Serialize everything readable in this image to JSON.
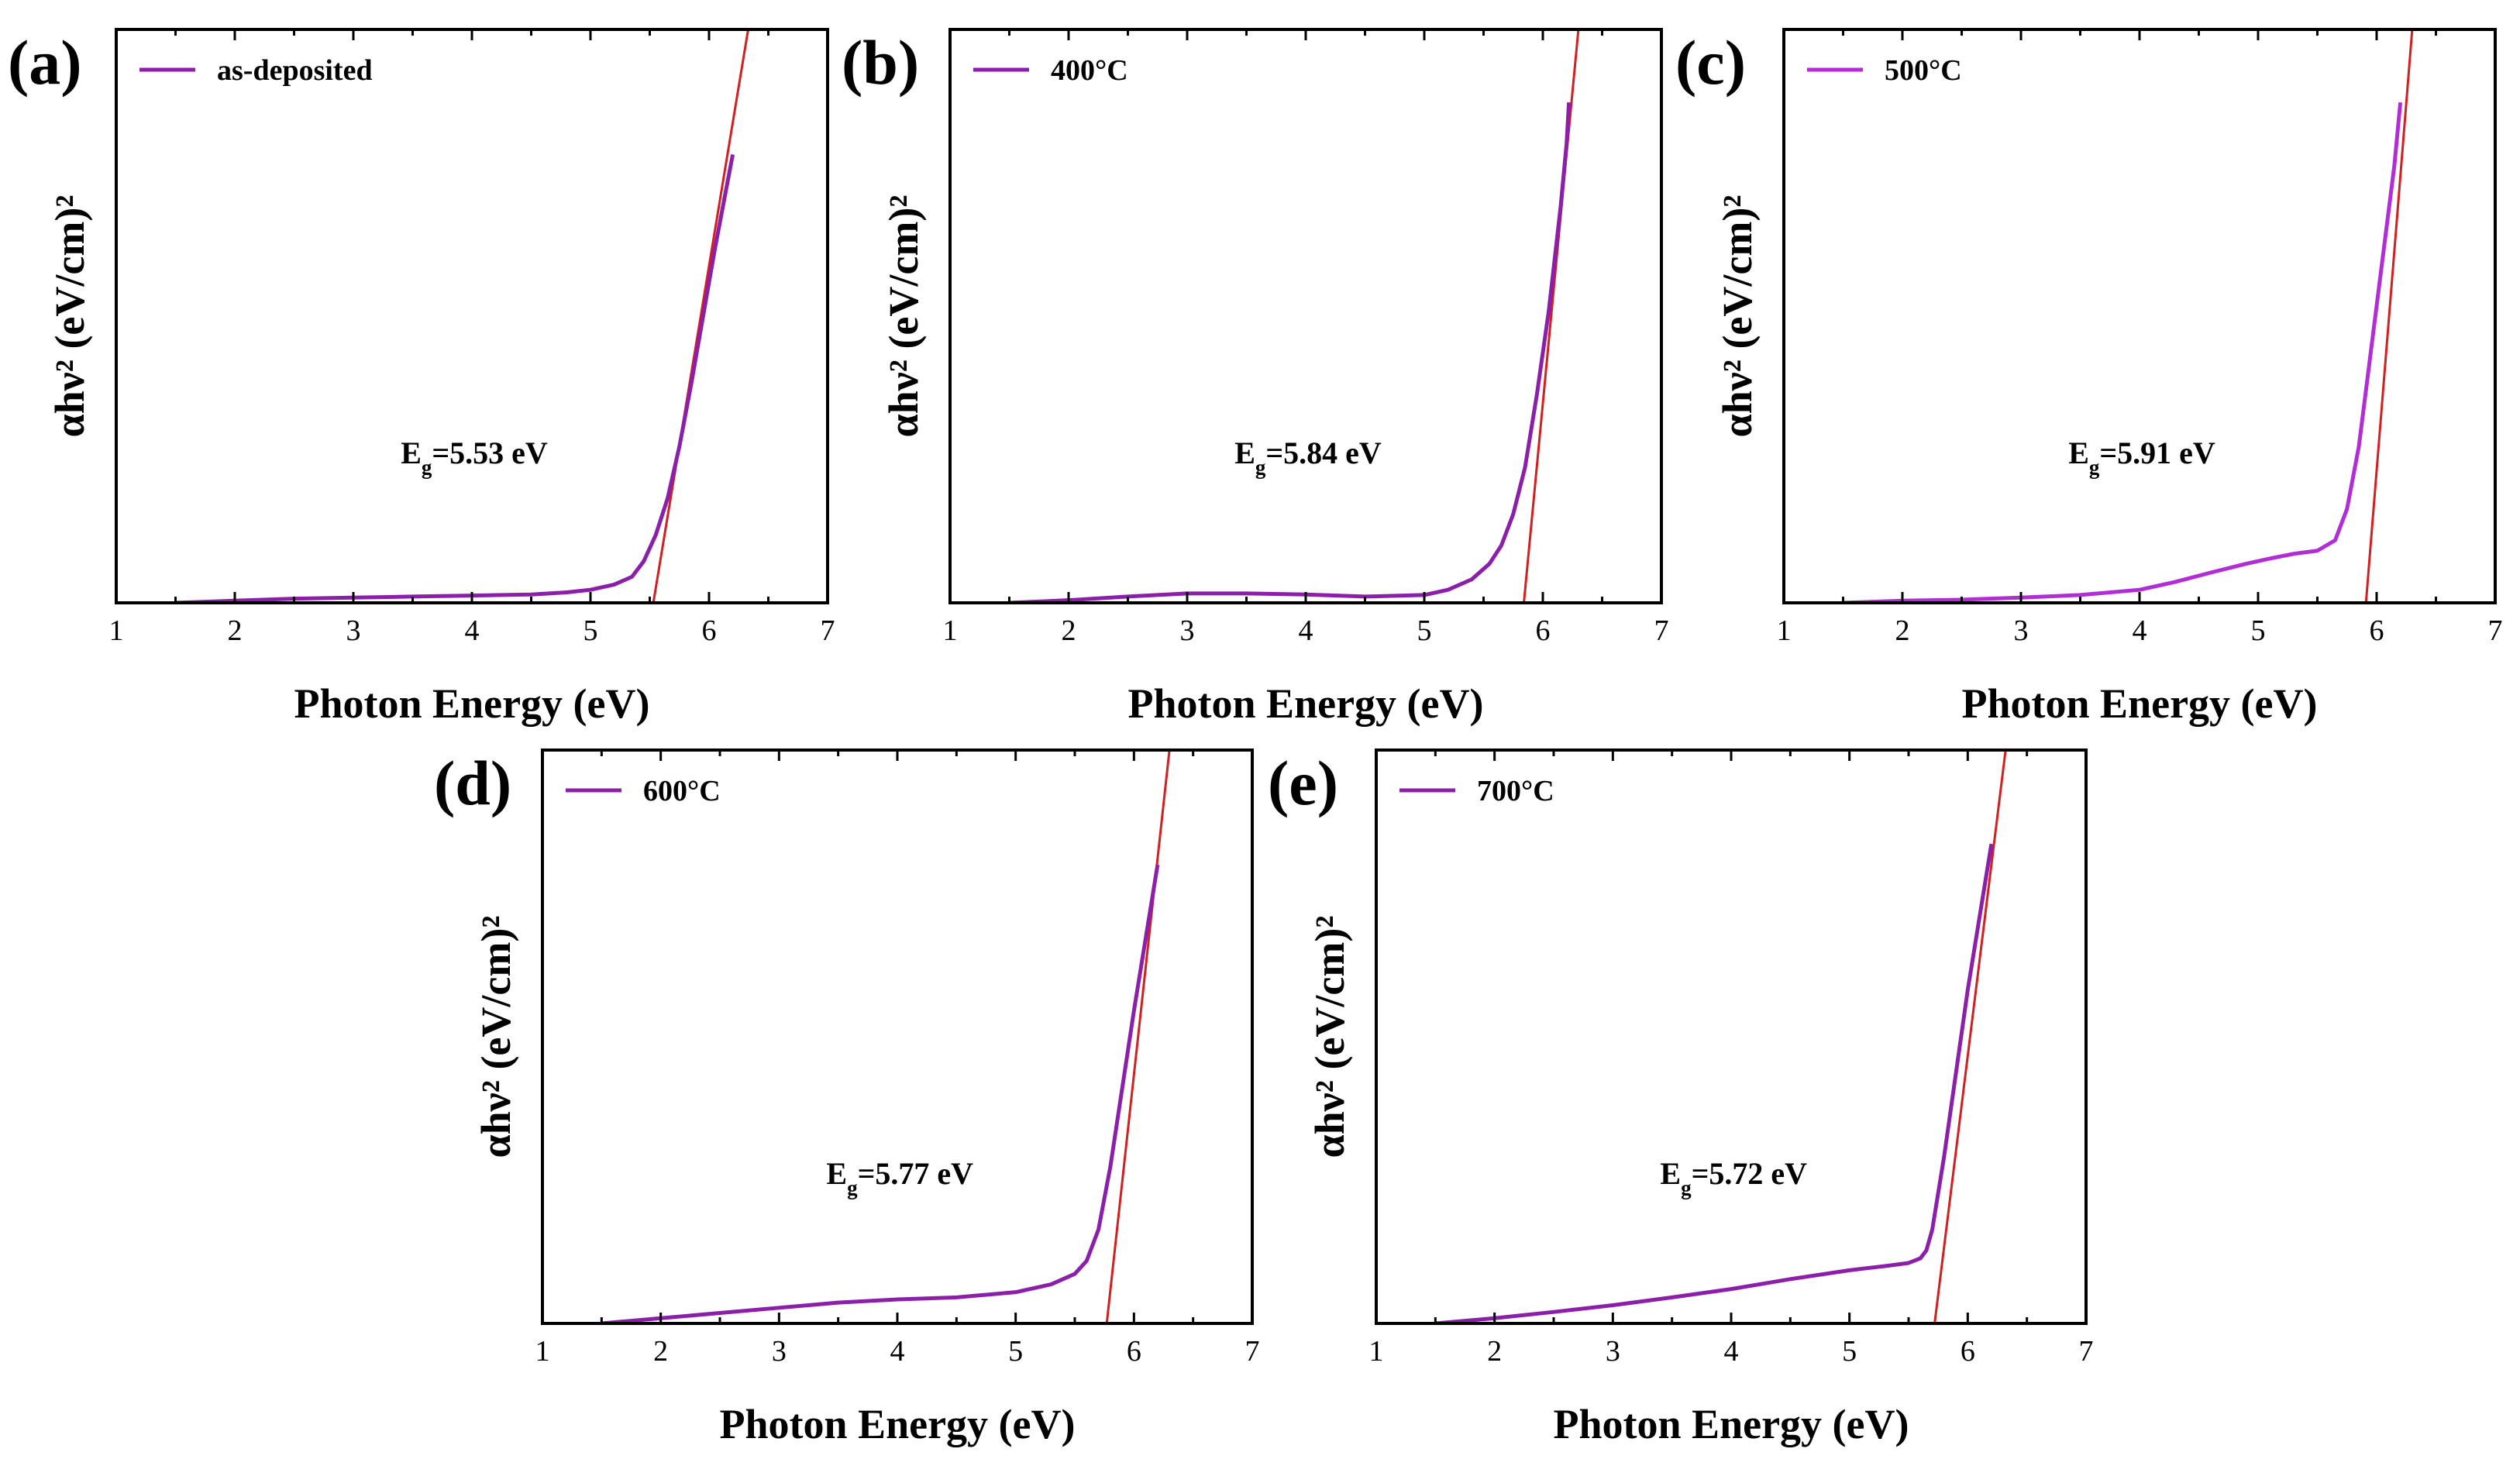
{
  "chart_data": [
    {
      "type": "line",
      "panel": "(a)",
      "legend": "as-deposited",
      "xlabel": "Photon Energy (eV)",
      "ylabel": "αhν² (eV/cm)²",
      "xlim": [
        1,
        7
      ],
      "ylim": [
        0,
        1.1
      ],
      "xticks": [
        1,
        2,
        3,
        4,
        5,
        6,
        7
      ],
      "annotation": {
        "main": "E",
        "sub": "g",
        "rest": "=5.53 eV"
      },
      "bandgap": 5.53,
      "series": [
        {
          "name": "as-deposited",
          "color": "#8b1fa9",
          "x": [
            1.5,
            2.0,
            2.5,
            3.0,
            3.5,
            4.0,
            4.5,
            4.8,
            5.0,
            5.2,
            5.35,
            5.45,
            5.55,
            5.65,
            5.75,
            5.85,
            5.95,
            6.05,
            6.15,
            6.2
          ],
          "y": [
            0.0,
            0.004,
            0.008,
            0.01,
            0.012,
            0.014,
            0.016,
            0.02,
            0.025,
            0.035,
            0.05,
            0.08,
            0.13,
            0.2,
            0.3,
            0.42,
            0.55,
            0.68,
            0.8,
            0.86
          ]
        }
      ],
      "fit": {
        "color": "#d21f1f",
        "x": [
          5.53,
          6.33
        ],
        "y": [
          0.0,
          1.1
        ]
      }
    },
    {
      "type": "line",
      "panel": "(b)",
      "legend": "400°C",
      "xlabel": "Photon Energy (eV)",
      "ylabel": "αhν² (eV/cm)²",
      "xlim": [
        1,
        7
      ],
      "ylim": [
        0,
        1.1
      ],
      "xticks": [
        1,
        2,
        3,
        4,
        5,
        6,
        7
      ],
      "annotation": {
        "main": "E",
        "sub": "g",
        "rest": "=5.84 eV"
      },
      "bandgap": 5.84,
      "series": [
        {
          "name": "400°C",
          "color": "#8b1fa9",
          "x": [
            1.5,
            2.0,
            2.5,
            3.0,
            3.5,
            4.0,
            4.5,
            5.0,
            5.2,
            5.4,
            5.55,
            5.65,
            5.75,
            5.85,
            5.95,
            6.05,
            6.15,
            6.2,
            6.22
          ],
          "y": [
            0.0,
            0.005,
            0.012,
            0.018,
            0.018,
            0.016,
            0.012,
            0.015,
            0.025,
            0.045,
            0.075,
            0.11,
            0.17,
            0.26,
            0.4,
            0.56,
            0.76,
            0.88,
            0.96
          ]
        }
      ],
      "fit": {
        "color": "#d21f1f",
        "x": [
          5.84,
          6.3
        ],
        "y": [
          0.0,
          1.1
        ]
      }
    },
    {
      "type": "line",
      "panel": "(c)",
      "legend": "500°C",
      "xlabel": "Photon Energy (eV)",
      "ylabel": "αhν² (eV/cm)²",
      "xlim": [
        1,
        7
      ],
      "ylim": [
        0,
        1.1
      ],
      "xticks": [
        1,
        2,
        3,
        4,
        5,
        6,
        7
      ],
      "annotation": {
        "main": "E",
        "sub": "g",
        "rest": "=5.91 eV"
      },
      "bandgap": 5.91,
      "series": [
        {
          "name": "500°C",
          "color": "#b22dd6",
          "x": [
            1.5,
            2.0,
            2.5,
            3.0,
            3.5,
            4.0,
            4.3,
            4.6,
            4.9,
            5.1,
            5.3,
            5.5,
            5.65,
            5.75,
            5.85,
            5.95,
            6.05,
            6.15,
            6.2
          ],
          "y": [
            0.0,
            0.004,
            0.006,
            0.01,
            0.015,
            0.025,
            0.04,
            0.058,
            0.075,
            0.085,
            0.094,
            0.1,
            0.12,
            0.18,
            0.3,
            0.48,
            0.66,
            0.84,
            0.96
          ]
        }
      ],
      "fit": {
        "color": "#d21f1f",
        "x": [
          5.91,
          6.3
        ],
        "y": [
          0.0,
          1.1
        ]
      }
    },
    {
      "type": "line",
      "panel": "(d)",
      "legend": "600°C",
      "xlabel": "Photon Energy (eV)",
      "ylabel": "αhν² (eV/cm)²",
      "xlim": [
        1,
        7
      ],
      "ylim": [
        0,
        1.1
      ],
      "xticks": [
        1,
        2,
        3,
        4,
        5,
        6,
        7
      ],
      "annotation": {
        "main": "E",
        "sub": "g",
        "rest": "=5.77 eV"
      },
      "bandgap": 5.77,
      "series": [
        {
          "name": "600°C",
          "color": "#8b1fa9",
          "x": [
            1.5,
            2.0,
            2.5,
            3.0,
            3.5,
            4.0,
            4.5,
            5.0,
            5.3,
            5.5,
            5.6,
            5.7,
            5.8,
            5.9,
            6.0,
            6.1,
            6.2
          ],
          "y": [
            0.0,
            0.01,
            0.02,
            0.03,
            0.04,
            0.046,
            0.05,
            0.06,
            0.075,
            0.095,
            0.12,
            0.18,
            0.3,
            0.45,
            0.6,
            0.74,
            0.88
          ]
        }
      ],
      "fit": {
        "color": "#d21f1f",
        "x": [
          5.77,
          6.3
        ],
        "y": [
          0.0,
          1.1
        ]
      }
    },
    {
      "type": "line",
      "panel": "(e)",
      "legend": "700°C",
      "xlabel": "Photon Energy (eV)",
      "ylabel": "αhν² (eV/cm)²",
      "xlim": [
        1,
        7
      ],
      "ylim": [
        0,
        1.1
      ],
      "xticks": [
        1,
        2,
        3,
        4,
        5,
        6,
        7
      ],
      "annotation": {
        "main": "E",
        "sub": "g",
        "rest": "=5.72 eV"
      },
      "bandgap": 5.72,
      "series": [
        {
          "name": "700°C",
          "color": "#8b1fa9",
          "x": [
            1.5,
            2.0,
            2.5,
            3.0,
            3.5,
            4.0,
            4.5,
            5.0,
            5.3,
            5.5,
            5.6,
            5.65,
            5.7,
            5.8,
            5.9,
            6.0,
            6.1,
            6.2
          ],
          "y": [
            0.0,
            0.01,
            0.022,
            0.035,
            0.05,
            0.066,
            0.085,
            0.102,
            0.11,
            0.116,
            0.125,
            0.14,
            0.18,
            0.32,
            0.48,
            0.64,
            0.78,
            0.92
          ]
        }
      ],
      "fit": {
        "color": "#d21f1f",
        "x": [
          5.72,
          6.32
        ],
        "y": [
          0.0,
          1.1
        ]
      }
    }
  ]
}
